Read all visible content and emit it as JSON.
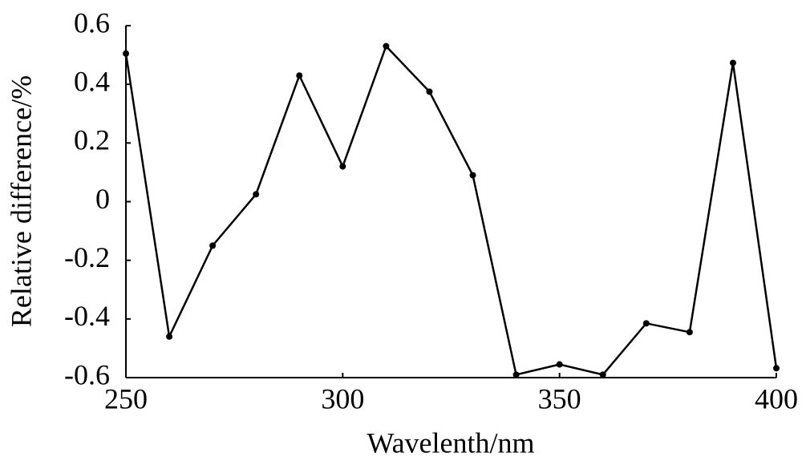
{
  "chart_data": {
    "type": "line",
    "xlabel": "Wavelenth/nm",
    "ylabel": "Relative difference/%",
    "x": [
      250,
      260,
      270,
      280,
      290,
      300,
      310,
      320,
      330,
      340,
      350,
      360,
      370,
      380,
      390,
      400
    ],
    "series": [
      {
        "color": "#000000",
        "values": [
          0.505,
          -0.46,
          -0.15,
          0.025,
          0.43,
          0.12,
          0.53,
          0.375,
          0.09,
          -0.59,
          -0.555,
          -0.59,
          -0.415,
          -0.445,
          0.473,
          -0.568
        ]
      }
    ],
    "xlim": [
      250,
      400
    ],
    "xticks": [
      250,
      300,
      350,
      400
    ],
    "ylim": [
      -0.6,
      0.6
    ],
    "yticks": [
      0.6,
      0.4,
      0.2,
      0,
      -0.2,
      -0.4,
      -0.6
    ]
  }
}
